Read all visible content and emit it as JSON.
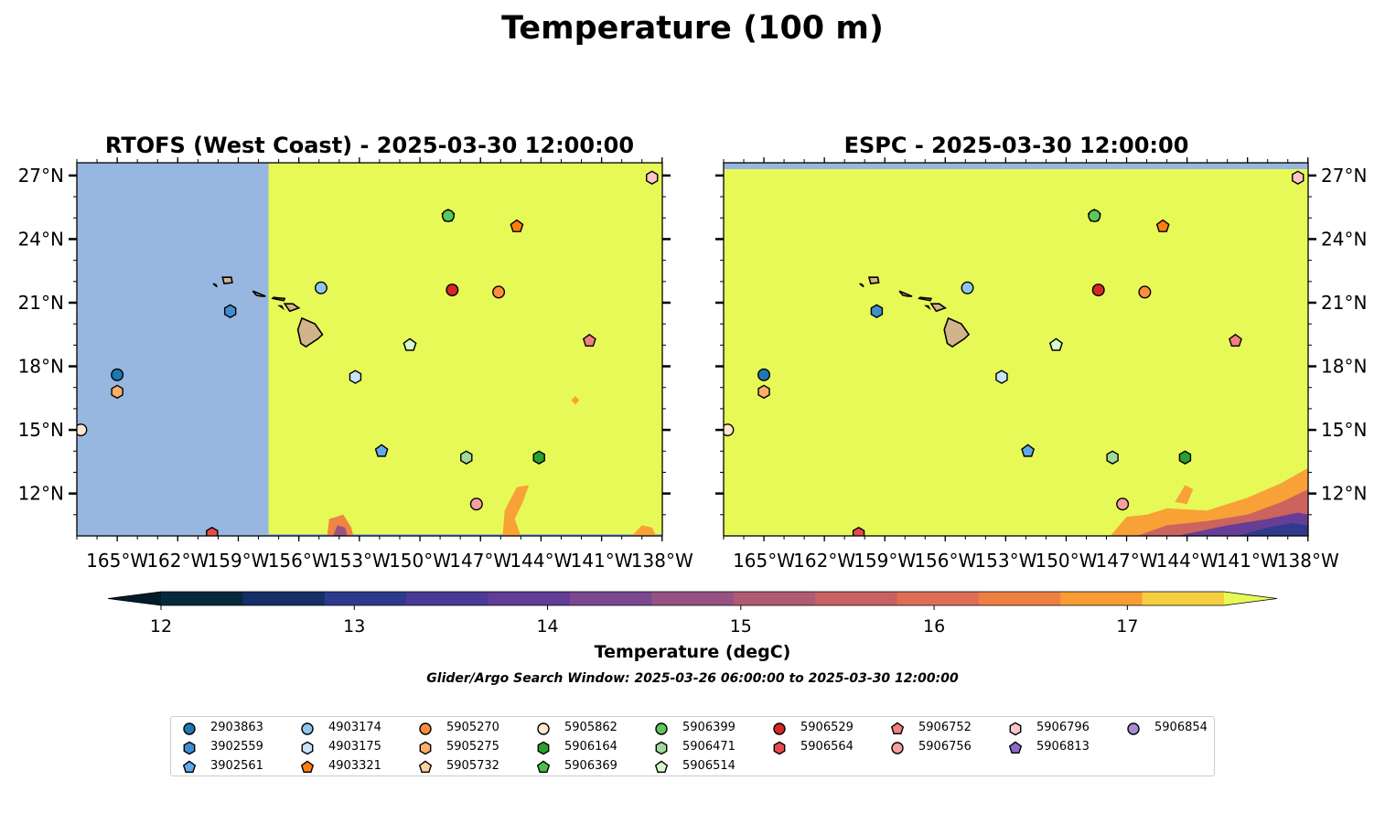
{
  "figure": {
    "title": "Temperature (100 m)",
    "subtitle": "Glider/Argo Search Window: 2025-03-26 06:00:00 to 2025-03-30 12:00:00"
  },
  "panels": [
    {
      "title": "RTOFS (West Coast) - 2025-03-30 12:00:00",
      "land_mask_west_of_lon": -157.5
    },
    {
      "title": "ESPC - 2025-03-30 12:00:00",
      "land_mask_north_of_lat": 27.3
    }
  ],
  "map_extent": {
    "lon_min": -167.0,
    "lon_max": -137.99,
    "lat_min": 10.0,
    "lat_max": 27.6
  },
  "axes": {
    "x_ticks": [
      "165°W",
      "162°W",
      "159°W",
      "156°W",
      "153°W",
      "150°W",
      "147°W",
      "144°W",
      "141°W",
      "138°W"
    ],
    "x_tick_values": [
      -165,
      -162,
      -159,
      -156,
      -153,
      -150,
      -147,
      -144,
      -141,
      -138
    ],
    "y_ticks": [
      "12°N",
      "15°N",
      "18°N",
      "21°N",
      "24°N",
      "27°N"
    ],
    "y_tick_values": [
      12,
      15,
      18,
      21,
      24,
      27
    ]
  },
  "colorbar": {
    "label": "Temperature (degC)",
    "ticks": [
      "12",
      "13",
      "14",
      "15",
      "16",
      "17"
    ],
    "tick_values": [
      12,
      13,
      14,
      15,
      16,
      17
    ],
    "vmin": 12,
    "vmax": 17.5,
    "step": 0.5,
    "extend": "both",
    "colors": [
      "#062a3d",
      "#162f68",
      "#2d3a8c",
      "#4a3a98",
      "#613c98",
      "#7b4891",
      "#955283",
      "#b05b71",
      "#c96062",
      "#de6d55",
      "#ef7e42",
      "#f99c35",
      "#f6cf41"
    ],
    "under_color": "#031b2a",
    "over_color": "#e6f957",
    "land_mask_color": "#97b6e0",
    "land_color": "#d2b48c"
  },
  "floats": [
    {
      "id": "2903863",
      "marker": "circle",
      "color": "#1f77b4",
      "lon": -165.0,
      "lat": 17.6
    },
    {
      "id": "3902559",
      "marker": "hexagon",
      "color": "#3f8ecf",
      "lon": -159.4,
      "lat": 20.6
    },
    {
      "id": "3902561",
      "marker": "pentagon",
      "color": "#60a9ea",
      "lon": -151.9,
      "lat": 14.0
    },
    {
      "id": "4903174",
      "marker": "circle",
      "color": "#8fc6ee",
      "lon": -154.9,
      "lat": 21.7
    },
    {
      "id": "4903175",
      "marker": "hexagon",
      "color": "#c6e5f8",
      "lon": -153.2,
      "lat": 17.5
    },
    {
      "id": "4903321",
      "marker": "pentagon",
      "color": "#ff7f0e",
      "lon": -145.2,
      "lat": 24.6
    },
    {
      "id": "5905270",
      "marker": "circle",
      "color": "#fd8d3c",
      "lon": -146.1,
      "lat": 21.5
    },
    {
      "id": "5905275",
      "marker": "hexagon",
      "color": "#fdae6b",
      "lon": -165.0,
      "lat": 16.8
    },
    {
      "id": "5905732",
      "marker": "pentagon",
      "color": "#fdd0a2",
      "lon": -150.5,
      "lat": 19.0
    },
    {
      "id": "5905862",
      "marker": "circle",
      "color": "#fee6ce",
      "lon": -166.8,
      "lat": 15.0
    },
    {
      "id": "5906164",
      "marker": "hexagon",
      "color": "#2ca02c",
      "lon": -144.1,
      "lat": 13.7
    },
    {
      "id": "5906369",
      "marker": "pentagon",
      "color": "#4bbf4b",
      "lon": -148.6,
      "lat": 25.1
    },
    {
      "id": "5906399",
      "marker": "circle",
      "color": "#5ac85a",
      "lon": -148.6,
      "lat": 25.1
    },
    {
      "id": "5906471",
      "marker": "hexagon",
      "color": "#a1d99b",
      "lon": -147.7,
      "lat": 13.7
    },
    {
      "id": "5906514",
      "marker": "pentagon",
      "color": "#d4f7cc",
      "lon": -150.5,
      "lat": 19.0
    },
    {
      "id": "5906529",
      "marker": "circle",
      "color": "#d62728",
      "lon": -148.4,
      "lat": 21.6
    },
    {
      "id": "5906564",
      "marker": "hexagon",
      "color": "#e84a4a",
      "lon": -160.3,
      "lat": 10.1
    },
    {
      "id": "5906752",
      "marker": "pentagon",
      "color": "#f08080",
      "lon": -141.6,
      "lat": 19.2
    },
    {
      "id": "5906756",
      "marker": "circle",
      "color": "#f4a0a0",
      "lon": -147.2,
      "lat": 11.5
    },
    {
      "id": "5906796",
      "marker": "hexagon",
      "color": "#fcc6c6",
      "lon": -138.5,
      "lat": 26.9
    },
    {
      "id": "5906813",
      "marker": "pentagon",
      "color": "#8c6bc8",
      "lon": null,
      "lat": null
    },
    {
      "id": "5906854",
      "marker": "circle",
      "color": "#a98ad6",
      "lon": null,
      "lat": null
    }
  ]
}
